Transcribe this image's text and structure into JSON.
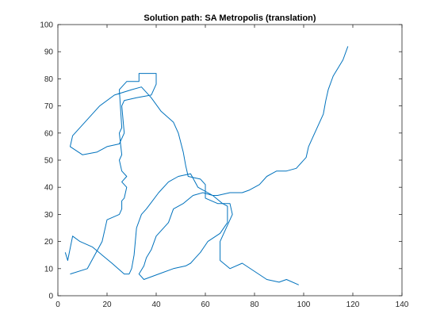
{
  "chart_data": {
    "type": "line",
    "title": "Solution path: SA Metropolis (translation)",
    "xlabel": "",
    "ylabel": "",
    "xlim": [
      0,
      140
    ],
    "ylim": [
      0,
      100
    ],
    "x_ticks": [
      0,
      20,
      40,
      60,
      80,
      100,
      120,
      140
    ],
    "y_ticks": [
      0,
      10,
      20,
      30,
      40,
      50,
      60,
      70,
      80,
      90,
      100
    ],
    "grid": false,
    "legend": "none",
    "series": [
      {
        "color": "#0072BD",
        "points": [
          [
            5,
            8
          ],
          [
            12,
            10
          ],
          [
            18,
            20
          ],
          [
            20,
            28
          ],
          [
            25,
            30
          ],
          [
            26,
            32
          ],
          [
            26,
            35
          ],
          [
            27,
            36
          ],
          [
            28,
            40
          ],
          [
            26,
            42
          ],
          [
            28,
            44
          ],
          [
            26,
            46
          ],
          [
            25,
            50
          ],
          [
            26,
            52
          ],
          [
            25,
            60
          ],
          [
            26,
            62
          ],
          [
            25,
            76
          ],
          [
            28,
            79
          ],
          [
            33,
            79
          ],
          [
            33,
            82
          ],
          [
            40,
            82
          ],
          [
            40,
            78
          ],
          [
            38,
            74
          ],
          [
            32,
            73
          ],
          [
            27,
            72
          ],
          [
            26,
            70
          ],
          [
            27,
            60
          ],
          [
            25,
            56
          ],
          [
            20,
            55
          ],
          [
            16,
            53
          ],
          [
            10,
            52
          ],
          [
            5,
            55
          ],
          [
            6,
            59
          ],
          [
            12,
            65
          ],
          [
            17,
            70
          ],
          [
            23,
            74
          ],
          [
            30,
            76
          ],
          [
            34,
            77
          ],
          [
            38,
            73
          ],
          [
            42,
            68
          ],
          [
            47,
            64
          ],
          [
            49,
            60
          ],
          [
            51,
            53
          ],
          [
            52,
            48
          ],
          [
            53,
            44
          ],
          [
            58,
            43
          ],
          [
            60,
            41
          ],
          [
            60,
            36
          ],
          [
            65,
            34
          ],
          [
            70,
            34
          ],
          [
            71,
            30
          ],
          [
            69,
            26
          ],
          [
            66,
            20
          ],
          [
            66,
            13
          ],
          [
            70,
            10
          ],
          [
            75,
            12
          ],
          [
            85,
            6
          ],
          [
            90,
            5
          ],
          [
            93,
            6
          ],
          [
            98,
            4
          ]
        ]
      },
      {
        "color": "#0072BD",
        "points": [
          [
            3,
            16
          ],
          [
            4,
            13
          ],
          [
            6,
            22
          ],
          [
            9,
            20
          ],
          [
            14,
            18
          ],
          [
            18,
            15
          ],
          [
            22,
            12
          ],
          [
            27,
            8
          ],
          [
            29,
            8
          ],
          [
            30,
            10
          ],
          [
            31,
            15
          ],
          [
            32,
            25
          ],
          [
            34,
            30
          ],
          [
            36,
            32
          ],
          [
            41,
            38
          ],
          [
            45,
            42
          ],
          [
            49,
            44
          ],
          [
            54,
            45
          ],
          [
            57,
            40
          ],
          [
            63,
            37
          ],
          [
            67,
            34
          ],
          [
            69,
            33
          ],
          [
            69,
            27
          ],
          [
            66,
            23
          ],
          [
            61,
            20
          ],
          [
            58,
            16
          ],
          [
            56,
            14
          ],
          [
            54,
            12
          ],
          [
            52,
            11
          ],
          [
            47,
            10
          ],
          [
            41,
            8
          ],
          [
            35,
            6
          ],
          [
            33,
            8
          ],
          [
            35,
            11
          ],
          [
            36,
            14
          ],
          [
            38,
            17
          ],
          [
            40,
            22
          ],
          [
            45,
            27
          ],
          [
            47,
            32
          ],
          [
            51,
            34
          ],
          [
            55,
            37
          ],
          [
            59,
            38
          ],
          [
            63,
            37
          ],
          [
            65,
            37
          ],
          [
            70,
            38
          ],
          [
            75,
            38
          ],
          [
            78,
            39
          ],
          [
            82,
            41
          ],
          [
            85,
            44
          ],
          [
            87,
            45
          ],
          [
            89,
            46
          ],
          [
            93,
            46
          ],
          [
            97,
            47
          ],
          [
            98,
            48
          ],
          [
            101,
            51
          ],
          [
            102,
            55
          ],
          [
            104,
            59
          ],
          [
            108,
            67
          ],
          [
            109,
            72
          ],
          [
            110,
            76
          ],
          [
            112,
            81
          ],
          [
            116,
            87
          ],
          [
            118,
            92
          ]
        ]
      }
    ]
  }
}
